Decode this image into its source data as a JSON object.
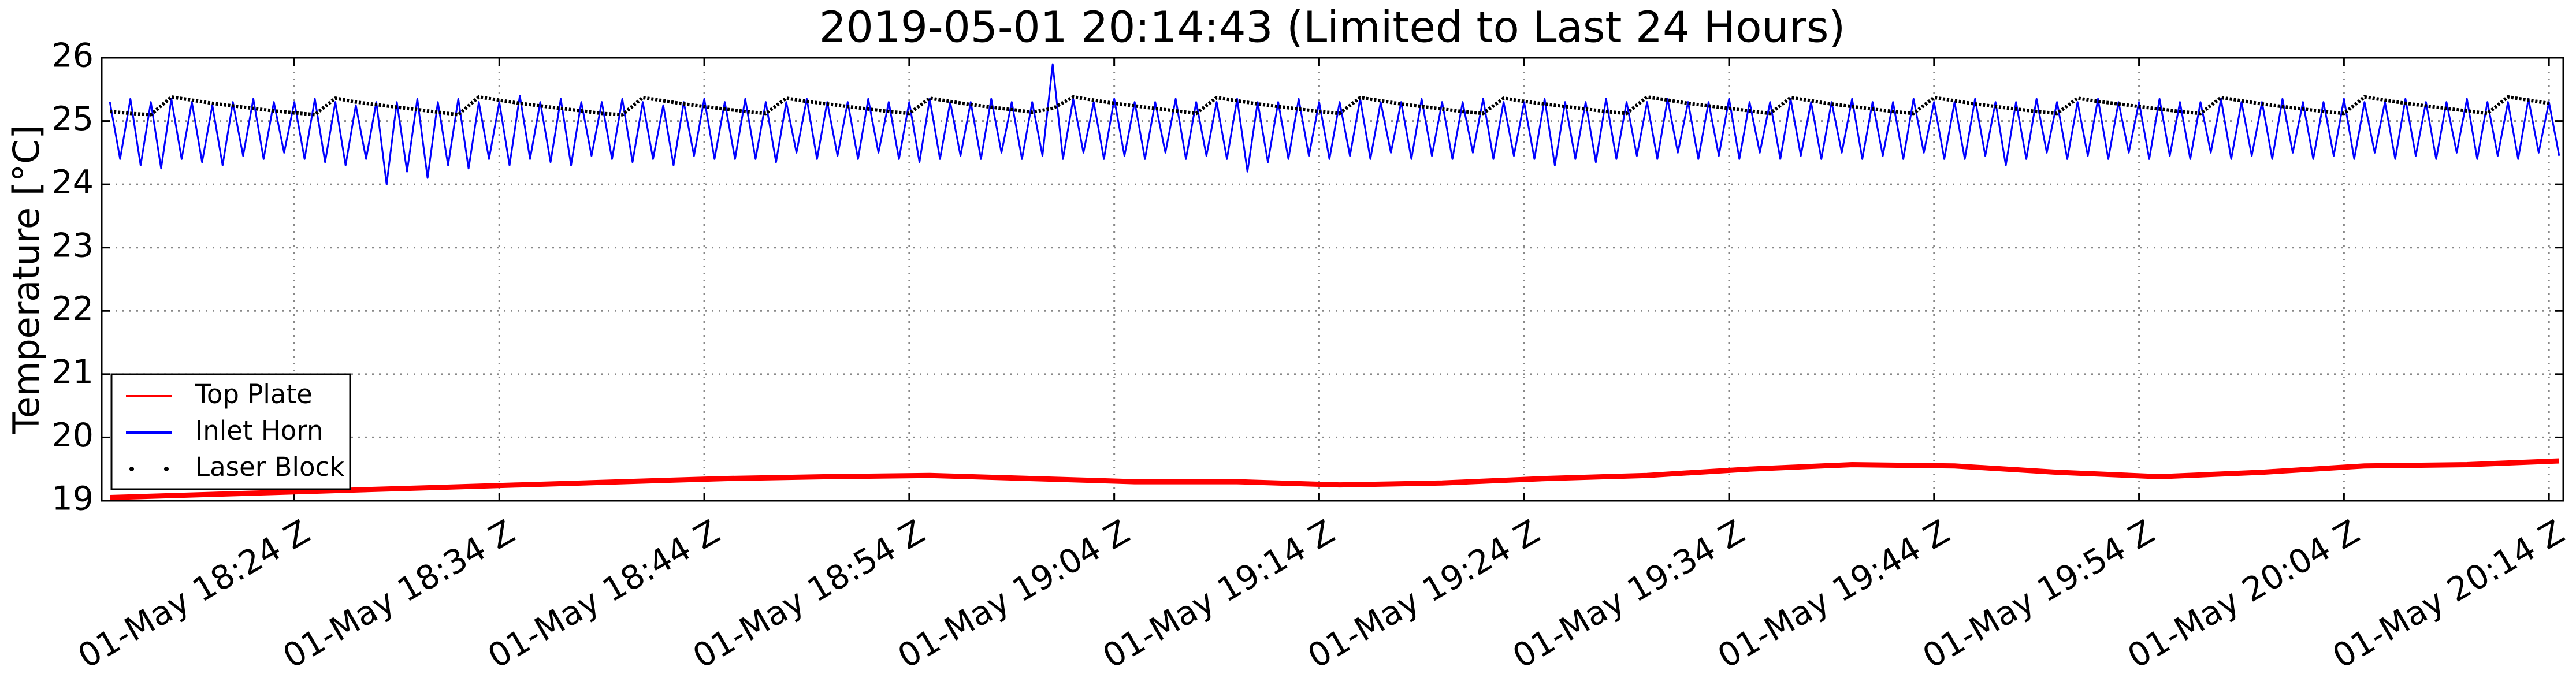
{
  "chart_data": {
    "type": "line",
    "title": "2019-05-01 20:14:43 (Limited to Last 24 Hours)",
    "ylabel": "Temperature [°C]",
    "xlim": [
      1094.6,
      1214.7
    ],
    "ylim": [
      19,
      26
    ],
    "yticks": [
      19,
      20,
      21,
      22,
      23,
      24,
      25,
      26
    ],
    "xticks": [
      {
        "value": 1104,
        "label": "01-May 18:24 Z"
      },
      {
        "value": 1114,
        "label": "01-May 18:34 Z"
      },
      {
        "value": 1124,
        "label": "01-May 18:44 Z"
      },
      {
        "value": 1134,
        "label": "01-May 18:54 Z"
      },
      {
        "value": 1144,
        "label": "01-May 19:04 Z"
      },
      {
        "value": 1154,
        "label": "01-May 19:14 Z"
      },
      {
        "value": 1164,
        "label": "01-May 19:24 Z"
      },
      {
        "value": 1174,
        "label": "01-May 19:34 Z"
      },
      {
        "value": 1184,
        "label": "01-May 19:44 Z"
      },
      {
        "value": 1194,
        "label": "01-May 19:54 Z"
      },
      {
        "value": 1204,
        "label": "01-May 20:04 Z"
      },
      {
        "value": 1214,
        "label": "01-May 20:14 Z"
      }
    ],
    "grid": true,
    "legend": "lower left",
    "series": [
      {
        "name": "Top Plate",
        "color": "#ff0000",
        "x": [
          1095,
          1100,
          1105,
          1110,
          1115,
          1120,
          1125,
          1130,
          1135,
          1140,
          1145,
          1150,
          1155,
          1160,
          1165,
          1170,
          1175,
          1180,
          1185,
          1190,
          1195,
          1200,
          1205,
          1210,
          1214.5
        ],
        "values": [
          19.05,
          19.1,
          19.15,
          19.2,
          19.25,
          19.3,
          19.35,
          19.38,
          19.4,
          19.35,
          19.3,
          19.3,
          19.25,
          19.28,
          19.35,
          19.4,
          19.5,
          19.57,
          19.55,
          19.45,
          19.38,
          19.45,
          19.55,
          19.57,
          19.63
        ]
      },
      {
        "name": "Inlet Horn",
        "color": "#0000ff",
        "x": [
          1095,
          1095.5,
          1096,
          1096.5,
          1097,
          1097.5,
          1098,
          1098.5,
          1099,
          1099.5,
          1100,
          1100.5,
          1101,
          1101.5,
          1102,
          1102.5,
          1103,
          1103.5,
          1104,
          1104.5,
          1105,
          1105.5,
          1106,
          1106.5,
          1107,
          1107.5,
          1108,
          1108.5,
          1109,
          1109.5,
          1110,
          1110.5,
          1111,
          1111.5,
          1112,
          1112.5,
          1113,
          1113.5,
          1114,
          1114.5,
          1115,
          1115.5,
          1116,
          1116.5,
          1117,
          1117.5,
          1118,
          1118.5,
          1119,
          1119.5,
          1120,
          1120.5,
          1121,
          1121.5,
          1122,
          1122.5,
          1123,
          1123.5,
          1124,
          1124.5,
          1125,
          1125.5,
          1126,
          1126.5,
          1127,
          1127.5,
          1128,
          1128.5,
          1129,
          1129.5,
          1130,
          1130.5,
          1131,
          1131.5,
          1132,
          1132.5,
          1133,
          1133.5,
          1134,
          1134.5,
          1135,
          1135.5,
          1136,
          1136.5,
          1137,
          1137.5,
          1138,
          1138.5,
          1139,
          1139.5,
          1140,
          1140.5,
          1141,
          1141.5,
          1142,
          1142.5,
          1143,
          1143.5,
          1144,
          1144.5,
          1145,
          1145.5,
          1146,
          1146.5,
          1147,
          1147.5,
          1148,
          1148.5,
          1149,
          1149.5,
          1150,
          1150.5,
          1151,
          1151.5,
          1152,
          1152.5,
          1153,
          1153.5,
          1154,
          1154.5,
          1155,
          1155.5,
          1156,
          1156.5,
          1157,
          1157.5,
          1158,
          1158.5,
          1159,
          1159.5,
          1160,
          1160.5,
          1161,
          1161.5,
          1162,
          1162.5,
          1163,
          1163.5,
          1164,
          1164.5,
          1165,
          1165.5,
          1166,
          1166.5,
          1167,
          1167.5,
          1168,
          1168.5,
          1169,
          1169.5,
          1170,
          1170.5,
          1171,
          1171.5,
          1172,
          1172.5,
          1173,
          1173.5,
          1174,
          1174.5,
          1175,
          1175.5,
          1176,
          1176.5,
          1177,
          1177.5,
          1178,
          1178.5,
          1179,
          1179.5,
          1180,
          1180.5,
          1181,
          1181.5,
          1182,
          1182.5,
          1183,
          1183.5,
          1184,
          1184.5,
          1185,
          1185.5,
          1186,
          1186.5,
          1187,
          1187.5,
          1188,
          1188.5,
          1189,
          1189.5,
          1190,
          1190.5,
          1191,
          1191.5,
          1192,
          1192.5,
          1193,
          1193.5,
          1194,
          1194.5,
          1195,
          1195.5,
          1196,
          1196.5,
          1197,
          1197.5,
          1198,
          1198.5,
          1199,
          1199.5,
          1200,
          1200.5,
          1201,
          1201.5,
          1202,
          1202.5,
          1203,
          1203.5,
          1204,
          1204.5,
          1205,
          1205.5,
          1206,
          1206.5,
          1207,
          1207.5,
          1208,
          1208.5,
          1209,
          1209.5,
          1210,
          1210.5,
          1211,
          1211.5,
          1212,
          1212.5,
          1213,
          1213.5,
          1214,
          1214.5
        ],
        "values": [
          25.3,
          24.4,
          25.35,
          24.3,
          25.3,
          24.25,
          25.35,
          24.4,
          25.3,
          24.35,
          25.25,
          24.3,
          25.3,
          24.45,
          25.35,
          24.4,
          25.3,
          24.5,
          25.3,
          24.4,
          25.35,
          24.35,
          25.3,
          24.3,
          25.25,
          24.4,
          25.3,
          24.0,
          25.3,
          24.2,
          25.35,
          24.1,
          25.3,
          24.3,
          25.35,
          24.25,
          25.3,
          24.4,
          25.3,
          24.3,
          25.4,
          24.4,
          25.3,
          24.35,
          25.35,
          24.3,
          25.3,
          24.45,
          25.3,
          24.4,
          25.35,
          24.35,
          25.3,
          24.4,
          25.25,
          24.3,
          25.3,
          24.45,
          25.35,
          24.4,
          25.3,
          24.4,
          25.35,
          24.4,
          25.3,
          24.35,
          25.3,
          24.5,
          25.35,
          24.4,
          25.3,
          24.45,
          25.3,
          24.4,
          25.35,
          24.5,
          25.3,
          24.4,
          25.3,
          24.35,
          25.35,
          24.4,
          25.3,
          24.45,
          25.3,
          24.4,
          25.35,
          24.5,
          25.3,
          24.4,
          25.3,
          24.45,
          25.9,
          24.4,
          25.35,
          24.5,
          25.3,
          24.4,
          25.35,
          24.45,
          25.3,
          24.4,
          25.3,
          24.5,
          25.35,
          24.4,
          25.3,
          24.45,
          25.3,
          24.4,
          25.35,
          24.2,
          25.3,
          24.35,
          25.3,
          24.4,
          25.35,
          24.45,
          25.3,
          24.4,
          25.3,
          24.45,
          25.35,
          24.4,
          25.3,
          24.5,
          25.3,
          24.4,
          25.35,
          24.45,
          25.3,
          24.4,
          25.3,
          24.5,
          25.35,
          24.4,
          25.3,
          24.45,
          25.3,
          24.4,
          25.35,
          24.3,
          25.3,
          24.4,
          25.3,
          24.35,
          25.35,
          24.4,
          25.3,
          24.45,
          25.3,
          24.4,
          25.35,
          24.5,
          25.3,
          24.4,
          25.3,
          24.45,
          25.35,
          24.4,
          25.3,
          24.5,
          25.3,
          24.4,
          25.35,
          24.45,
          25.3,
          24.4,
          25.3,
          24.5,
          25.35,
          24.4,
          25.3,
          24.45,
          25.3,
          24.4,
          25.35,
          24.5,
          25.3,
          24.4,
          25.3,
          24.4,
          25.35,
          24.45,
          25.3,
          24.3,
          25.3,
          24.4,
          25.35,
          24.5,
          25.3,
          24.4,
          25.3,
          24.45,
          25.35,
          24.4,
          25.3,
          24.5,
          25.3,
          24.4,
          25.35,
          24.45,
          25.3,
          24.4,
          25.3,
          24.5,
          25.35,
          24.4,
          25.3,
          24.45,
          25.3,
          24.4,
          25.35,
          24.5,
          25.3,
          24.4,
          25.3,
          24.45,
          25.35,
          24.4,
          25.3,
          24.5,
          25.3,
          24.4,
          25.35,
          24.45,
          25.3,
          24.4,
          25.3,
          24.5,
          25.35,
          24.4,
          25.3,
          24.45,
          25.3,
          24.4,
          25.35,
          24.5,
          25.3,
          24.45
        ]
      },
      {
        "name": "Laser Block",
        "color": "#000000",
        "marker": ".",
        "x": [
          1095,
          1096,
          1097,
          1098,
          1099,
          1100,
          1101,
          1102,
          1103,
          1104,
          1105,
          1106,
          1107,
          1108,
          1109,
          1110,
          1111,
          1112,
          1113,
          1114,
          1115,
          1116,
          1117,
          1118,
          1119,
          1120,
          1121,
          1122,
          1123,
          1124,
          1125,
          1126,
          1127,
          1128,
          1129,
          1130,
          1131,
          1132,
          1133,
          1134,
          1135,
          1136,
          1137,
          1138,
          1139,
          1140,
          1141,
          1142,
          1143,
          1144,
          1145,
          1146,
          1147,
          1148,
          1149,
          1150,
          1151,
          1152,
          1153,
          1154,
          1155,
          1156,
          1157,
          1158,
          1159,
          1160,
          1161,
          1162,
          1163,
          1164,
          1165,
          1166,
          1167,
          1168,
          1169,
          1170,
          1171,
          1172,
          1173,
          1174,
          1175,
          1176,
          1177,
          1178,
          1179,
          1180,
          1181,
          1182,
          1183,
          1184,
          1185,
          1186,
          1187,
          1188,
          1189,
          1190,
          1191,
          1192,
          1193,
          1194,
          1195,
          1196,
          1197,
          1198,
          1199,
          1200,
          1201,
          1202,
          1203,
          1204,
          1205,
          1206,
          1207,
          1208,
          1209,
          1210,
          1211,
          1212,
          1213,
          1214
        ],
        "values": [
          25.15,
          25.12,
          25.1,
          25.38,
          25.33,
          25.28,
          25.24,
          25.2,
          25.16,
          25.13,
          25.1,
          25.36,
          25.3,
          25.26,
          25.22,
          25.18,
          25.14,
          25.1,
          25.38,
          25.33,
          25.28,
          25.24,
          25.2,
          25.16,
          25.12,
          25.1,
          25.37,
          25.32,
          25.27,
          25.23,
          25.19,
          25.15,
          25.12,
          25.36,
          25.31,
          25.27,
          25.23,
          25.19,
          25.15,
          25.12,
          25.36,
          25.31,
          25.26,
          25.22,
          25.18,
          25.14,
          25.2,
          25.38,
          25.33,
          25.28,
          25.24,
          25.2,
          25.16,
          25.12,
          25.37,
          25.32,
          25.27,
          25.23,
          25.19,
          25.15,
          25.12,
          25.37,
          25.32,
          25.27,
          25.23,
          25.19,
          25.15,
          25.12,
          25.36,
          25.31,
          25.27,
          25.23,
          25.19,
          25.15,
          25.12,
          25.38,
          25.33,
          25.28,
          25.24,
          25.2,
          25.16,
          25.12,
          25.37,
          25.32,
          25.27,
          25.23,
          25.19,
          25.15,
          25.12,
          25.37,
          25.32,
          25.27,
          25.23,
          25.19,
          25.15,
          25.12,
          25.36,
          25.31,
          25.27,
          25.23,
          25.19,
          25.15,
          25.12,
          25.37,
          25.32,
          25.27,
          25.23,
          25.19,
          25.15,
          25.12,
          25.38,
          25.33,
          25.28,
          25.24,
          25.2,
          25.16,
          25.12,
          25.38,
          25.33,
          25.28
        ]
      }
    ]
  }
}
